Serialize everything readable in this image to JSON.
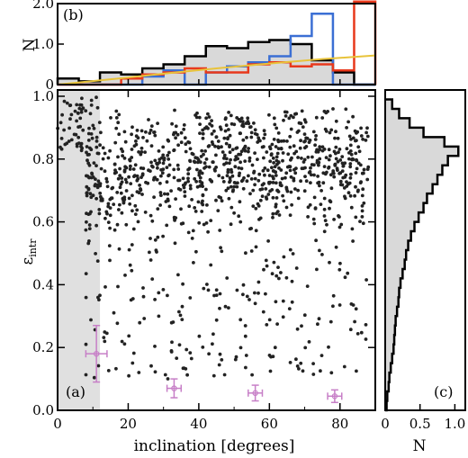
{
  "chart_data": [
    {
      "panel": "a",
      "type": "scatter",
      "panel_label": "(a)",
      "xlabel": "inclination [degrees]",
      "ylabel_main": "ε",
      "ylabel_sub": "intr",
      "xlim": [
        0,
        90
      ],
      "ylim": [
        0,
        1.02
      ],
      "xticks": [
        0,
        20,
        40,
        60,
        80
      ],
      "yticks": [
        0.0,
        0.2,
        0.4,
        0.6,
        0.8,
        1.0
      ],
      "shaded_region_x": [
        0,
        12
      ],
      "point_color": "#222222",
      "shade_color": "#e0e0e0",
      "errorbar_color": "#c77fc7",
      "error_points": [
        {
          "x": 11,
          "y": 0.18,
          "xerr": 3,
          "yerr": 0.09
        },
        {
          "x": 33,
          "y": 0.07,
          "xerr": 2,
          "yerr": 0.03
        },
        {
          "x": 56,
          "y": 0.055,
          "xerr": 2,
          "yerr": 0.025
        },
        {
          "x": 78.5,
          "y": 0.045,
          "xerr": 2,
          "yerr": 0.02
        }
      ]
    },
    {
      "panel": "b",
      "type": "histogram",
      "panel_label": "(b)",
      "ylabel": "N",
      "xlim": [
        0,
        90
      ],
      "ylim": [
        0,
        2.0
      ],
      "yticks": [
        0,
        1.0,
        2.0
      ],
      "bin_edges": [
        0,
        6,
        12,
        18,
        24,
        30,
        36,
        42,
        48,
        54,
        60,
        66,
        72,
        78,
        84,
        90
      ],
      "series": [
        {
          "color": "#000000",
          "fill": "#d9d9d9",
          "values": [
            0.15,
            0.08,
            0.3,
            0.25,
            0.4,
            0.5,
            0.7,
            0.95,
            0.9,
            1.05,
            1.1,
            1.0,
            0.6,
            0.3,
            0.0
          ]
        },
        {
          "color": "#3b6fd4",
          "values": [
            0.0,
            0.0,
            0.0,
            0.0,
            0.2,
            0.35,
            0.0,
            0.3,
            0.45,
            0.55,
            0.7,
            1.2,
            1.75,
            0.0,
            0.0
          ]
        },
        {
          "color": "#e8391c",
          "values": [
            0.0,
            0.0,
            0.0,
            0.15,
            0.25,
            0.3,
            0.4,
            0.3,
            0.3,
            0.5,
            0.55,
            0.45,
            0.5,
            0.35,
            2.05
          ]
        }
      ],
      "curve": {
        "color": "#e8c33a",
        "x": [
          0,
          15,
          30,
          45,
          60,
          75,
          90
        ],
        "y": [
          0.0,
          0.13,
          0.27,
          0.4,
          0.52,
          0.63,
          0.72
        ]
      }
    },
    {
      "panel": "c",
      "type": "histogram",
      "orientation": "horizontal",
      "panel_label": "(c)",
      "xlabel": "N",
      "xlim": [
        0,
        1.15
      ],
      "ylim": [
        0,
        1.02
      ],
      "xticks": [
        0,
        0.5,
        1.0
      ],
      "xtick_labels": [
        "0",
        "0.5",
        "1.0"
      ],
      "bin_edges": [
        0,
        0.03,
        0.06,
        0.09,
        0.12,
        0.15,
        0.18,
        0.21,
        0.24,
        0.27,
        0.3,
        0.33,
        0.36,
        0.39,
        0.42,
        0.45,
        0.48,
        0.51,
        0.54,
        0.57,
        0.6,
        0.63,
        0.66,
        0.69,
        0.72,
        0.75,
        0.78,
        0.81,
        0.84,
        0.87,
        0.9,
        0.93,
        0.96,
        0.99
      ],
      "values": [
        0.02,
        0.03,
        0.05,
        0.06,
        0.08,
        0.1,
        0.12,
        0.13,
        0.14,
        0.15,
        0.17,
        0.19,
        0.2,
        0.22,
        0.25,
        0.28,
        0.3,
        0.33,
        0.37,
        0.42,
        0.48,
        0.55,
        0.6,
        0.68,
        0.75,
        0.82,
        0.9,
        1.05,
        0.85,
        0.55,
        0.35,
        0.2,
        0.1
      ],
      "color": "#000000",
      "fill": "#d9d9d9"
    }
  ]
}
